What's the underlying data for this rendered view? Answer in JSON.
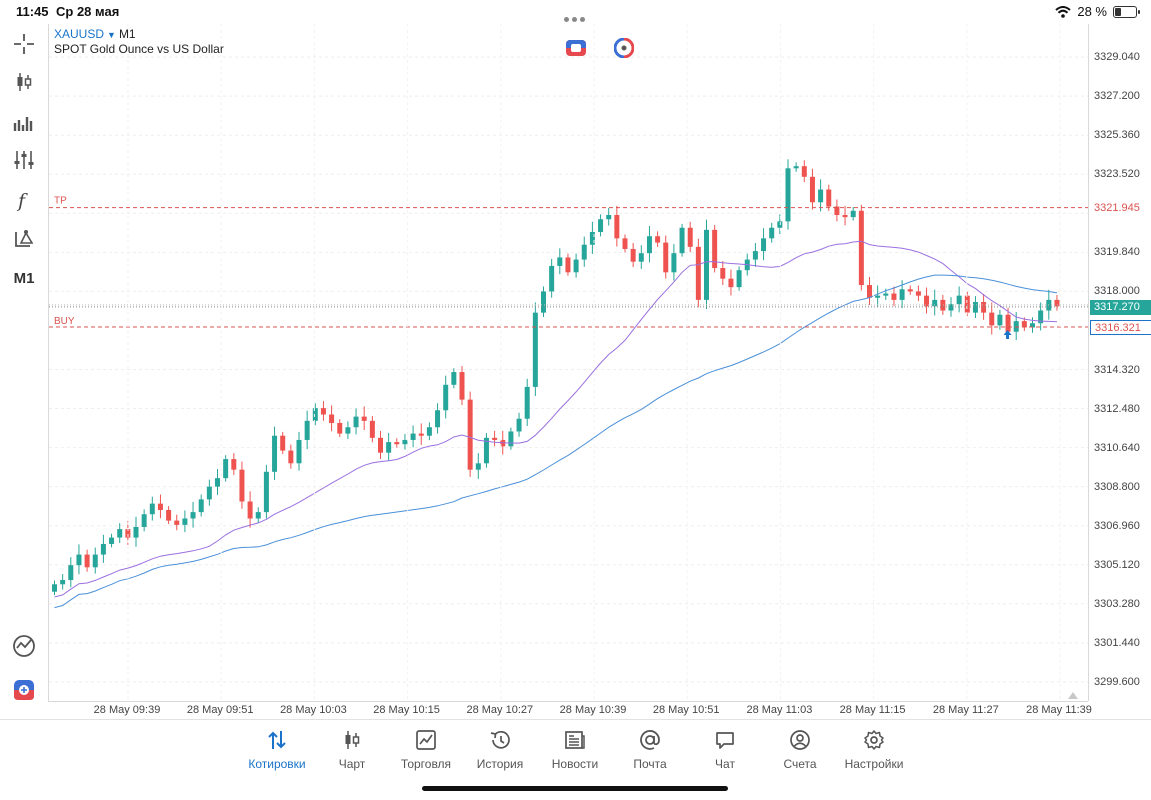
{
  "status_bar": {
    "time": "11:45",
    "date": "Ср 28 мая",
    "battery": "28 %",
    "battery_level": 0.28
  },
  "symbol": {
    "name": "XAUUSD",
    "timeframe": "M1",
    "description": "SPOT Gold Ounce vs US Dollar"
  },
  "toolbar": {
    "items": [
      {
        "icon": "crosshair-icon"
      },
      {
        "icon": "candlestick-type-icon"
      },
      {
        "icon": "volume-bars-icon"
      },
      {
        "icon": "indicator-sliders-icon"
      },
      {
        "icon": "function-icon"
      },
      {
        "icon": "drawing-objects-icon"
      },
      {
        "label": "M1"
      }
    ],
    "bottom_items": [
      {
        "icon": "trade-signals-icon"
      },
      {
        "icon": "one-click-trading-icon"
      }
    ]
  },
  "chart_data": {
    "type": "candlestick",
    "symbol": "XAUUSD",
    "timeframe": "M1",
    "ylim": [
      3298.7,
      3330.6
    ],
    "y_ticks": [
      "3329.040",
      "3327.200",
      "3325.360",
      "3323.520",
      "3321.680",
      "3319.840",
      "3318.000",
      "3314.320",
      "3312.480",
      "3310.640",
      "3308.800",
      "3306.960",
      "3305.120",
      "3303.280",
      "3301.440",
      "3299.600"
    ],
    "x_ticks": [
      "28 May 09:39",
      "28 May 09:51",
      "28 May 10:03",
      "28 May 10:15",
      "28 May 10:27",
      "28 May 10:39",
      "28 May 10:51",
      "28 May 11:03",
      "28 May 11:15",
      "28 May 11:27",
      "28 May 11:39"
    ],
    "up_color": "#26a69a",
    "down_color": "#ef5350",
    "closes": [
      3304.2,
      3304.4,
      3305.1,
      3305.6,
      3305.0,
      3305.6,
      3306.1,
      3306.4,
      3306.8,
      3306.4,
      3306.9,
      3307.5,
      3308.0,
      3307.7,
      3307.2,
      3307.0,
      3307.3,
      3307.6,
      3308.2,
      3308.8,
      3309.2,
      3310.1,
      3309.6,
      3308.1,
      3307.3,
      3307.6,
      3309.5,
      3311.2,
      3310.5,
      3309.9,
      3311.0,
      3311.9,
      3312.5,
      3312.2,
      3311.8,
      3311.3,
      3311.6,
      3312.1,
      3311.9,
      3311.1,
      3310.4,
      3310.9,
      3310.8,
      3311.0,
      3311.3,
      3311.2,
      3311.6,
      3312.4,
      3313.6,
      3314.2,
      3312.9,
      3309.6,
      3309.9,
      3311.1,
      3311.0,
      3310.7,
      3311.4,
      3312.0,
      3313.5,
      3317.0,
      3318.0,
      3319.2,
      3319.6,
      3318.9,
      3319.5,
      3320.2,
      3320.8,
      3321.4,
      3321.6,
      3320.5,
      3320.0,
      3319.4,
      3319.8,
      3320.6,
      3320.3,
      3318.9,
      3319.8,
      3321.0,
      3320.1,
      3317.6,
      3320.9,
      3319.1,
      3318.6,
      3318.2,
      3319.0,
      3319.5,
      3319.9,
      3320.5,
      3321.0,
      3321.3,
      3323.8,
      3323.9,
      3323.4,
      3322.2,
      3322.8,
      3322.0,
      3321.6,
      3321.5,
      3321.8,
      3318.3,
      3317.7,
      3317.8,
      3317.9,
      3317.6,
      3318.1,
      3318.0,
      3317.8,
      3317.3,
      3317.6,
      3317.1,
      3317.4,
      3317.8,
      3317.0,
      3317.5,
      3317.0,
      3316.4,
      3316.9,
      3316.1,
      3316.6,
      3316.3,
      3316.5,
      3317.1,
      3317.6,
      3317.3
    ]
  },
  "lines": {
    "tp_label": "TP",
    "buy_label": "BUY",
    "tp_price": 3321.945,
    "buy_price": 3316.321,
    "current_price": 3317.27
  },
  "price_tags": {
    "tp": "3321.945",
    "current": "3317.270",
    "buy": "3316.321"
  },
  "bottom_nav": {
    "active": 0,
    "items": [
      {
        "label": "Котировки",
        "icon": "quotes-icon"
      },
      {
        "label": "Чарт",
        "icon": "chart-icon"
      },
      {
        "label": "Торговля",
        "icon": "trade-icon"
      },
      {
        "label": "История",
        "icon": "history-icon"
      },
      {
        "label": "Новости",
        "icon": "news-icon"
      },
      {
        "label": "Почта",
        "icon": "mail-icon"
      },
      {
        "label": "Чат",
        "icon": "chat-icon"
      },
      {
        "label": "Счета",
        "icon": "accounts-icon"
      },
      {
        "label": "Настройки",
        "icon": "settings-icon"
      }
    ]
  }
}
